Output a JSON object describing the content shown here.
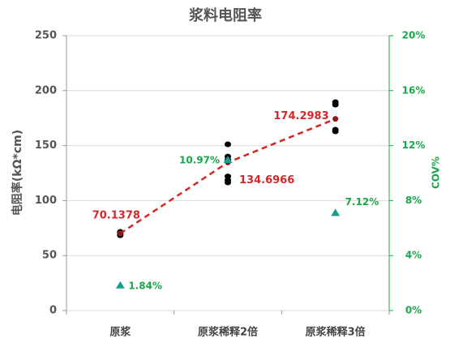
{
  "chart_data": {
    "type": "scatter",
    "title": "浆料电阻率",
    "ylabel": "电阻率(kΩ*cm)",
    "y2label": "COV%",
    "categories": [
      "原浆",
      "原浆稀释2倍",
      "原浆稀释3倍"
    ],
    "ylim": [
      0,
      250
    ],
    "yticks": [
      0,
      50,
      100,
      150,
      200,
      250
    ],
    "y2lim": [
      0,
      20
    ],
    "y2ticks": [
      {
        "value": 0,
        "label": "0%"
      },
      {
        "value": 4,
        "label": "4%"
      },
      {
        "value": 8,
        "label": "8%"
      },
      {
        "value": 12,
        "label": "12%"
      },
      {
        "value": 16,
        "label": "16%"
      },
      {
        "value": 20,
        "label": "20%"
      }
    ],
    "grid": true,
    "series": [
      {
        "type": "scatter",
        "color": "#000000",
        "values": [
          [
            71.5,
            70,
            68.5
          ],
          [
            151.2,
            140,
            137,
            122,
            118.7,
            116.5
          ],
          [
            189.5,
            187.3,
            164.5,
            163
          ]
        ]
      },
      {
        "type": "line",
        "color": "#d62728",
        "dashed": true,
        "values": [
          70.1378,
          134.6966,
          174.2983
        ]
      },
      {
        "type": "marker",
        "axis": "y2",
        "color": "#1a9f8f",
        "values": [
          1.84,
          10.97,
          7.12
        ],
        "value_labels": [
          "1.84%",
          "10.97%",
          "7.12%"
        ]
      }
    ]
  }
}
